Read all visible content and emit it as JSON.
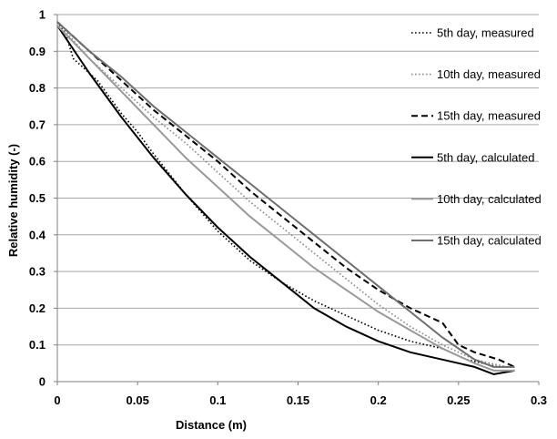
{
  "chart_data": {
    "type": "line",
    "title": "",
    "xlabel": "Distance (m)",
    "ylabel": "Relative humidity (-)",
    "xlim": [
      0,
      0.3
    ],
    "ylim": [
      0,
      1
    ],
    "xticks": [
      0,
      0.05,
      0.1,
      0.15,
      0.2,
      0.25,
      0.3
    ],
    "xtick_labels": [
      "0",
      "0.05",
      "0.1",
      "0.15",
      "0.2",
      "0.25",
      "0.3"
    ],
    "yticks": [
      0,
      0.1,
      0.2,
      0.3,
      0.4,
      0.5,
      0.6,
      0.7,
      0.8,
      0.9,
      1
    ],
    "ytick_labels": [
      "0",
      "0.1",
      "0.2",
      "0.3",
      "0.4",
      "0.5",
      "0.6",
      "0.7",
      "0.8",
      "0.9",
      "1"
    ],
    "grid": "horizontal",
    "legend_position": "right",
    "series": [
      {
        "name": "5th day, measured",
        "color": "#000000",
        "style": "dotted",
        "x": [
          0,
          0.005,
          0.01,
          0.015,
          0.02,
          0.025,
          0.03,
          0.035,
          0.04,
          0.05,
          0.06,
          0.08,
          0.1,
          0.12,
          0.14,
          0.16,
          0.18,
          0.2,
          0.22,
          0.24,
          0.255,
          0.275,
          0.285
        ],
        "y": [
          0.98,
          0.95,
          0.88,
          0.86,
          0.84,
          0.82,
          0.79,
          0.76,
          0.73,
          0.68,
          0.62,
          0.51,
          0.41,
          0.33,
          0.27,
          0.22,
          0.18,
          0.14,
          0.11,
          0.09,
          0.06,
          0.04,
          0.04
        ]
      },
      {
        "name": "10th day, measured",
        "color": "#888888",
        "style": "dotted",
        "x": [
          0,
          0.02,
          0.04,
          0.06,
          0.08,
          0.1,
          0.12,
          0.14,
          0.16,
          0.18,
          0.2,
          0.22,
          0.24,
          0.26,
          0.28
        ],
        "y": [
          0.98,
          0.88,
          0.8,
          0.72,
          0.65,
          0.57,
          0.49,
          0.42,
          0.35,
          0.28,
          0.21,
          0.15,
          0.1,
          0.06,
          0.04
        ]
      },
      {
        "name": "15th day, measured",
        "color": "#000000",
        "style": "dashed",
        "x": [
          0,
          0.02,
          0.04,
          0.06,
          0.08,
          0.1,
          0.12,
          0.14,
          0.16,
          0.18,
          0.2,
          0.22,
          0.24,
          0.25,
          0.26,
          0.275,
          0.285
        ],
        "y": [
          0.98,
          0.9,
          0.82,
          0.74,
          0.67,
          0.6,
          0.52,
          0.45,
          0.38,
          0.31,
          0.25,
          0.2,
          0.16,
          0.1,
          0.08,
          0.06,
          0.04
        ]
      },
      {
        "name": "5th day, calculated",
        "color": "#000000",
        "style": "solid",
        "x": [
          0,
          0.02,
          0.04,
          0.06,
          0.08,
          0.1,
          0.12,
          0.14,
          0.16,
          0.18,
          0.2,
          0.22,
          0.24,
          0.26,
          0.272,
          0.285
        ],
        "y": [
          0.97,
          0.84,
          0.72,
          0.61,
          0.51,
          0.42,
          0.34,
          0.27,
          0.2,
          0.15,
          0.11,
          0.08,
          0.06,
          0.04,
          0.02,
          0.03
        ]
      },
      {
        "name": "10th day, calculated",
        "color": "#999999",
        "style": "solid",
        "x": [
          0,
          0.02,
          0.04,
          0.06,
          0.08,
          0.1,
          0.12,
          0.14,
          0.16,
          0.18,
          0.2,
          0.22,
          0.24,
          0.26,
          0.272,
          0.285
        ],
        "y": [
          0.97,
          0.88,
          0.79,
          0.7,
          0.61,
          0.53,
          0.45,
          0.38,
          0.31,
          0.25,
          0.19,
          0.14,
          0.09,
          0.05,
          0.03,
          0.03
        ]
      },
      {
        "name": "15th day, calculated",
        "color": "#6e6e6e",
        "style": "solid",
        "x": [
          0,
          0.02,
          0.04,
          0.06,
          0.08,
          0.1,
          0.12,
          0.14,
          0.16,
          0.18,
          0.2,
          0.22,
          0.24,
          0.26,
          0.272,
          0.285
        ],
        "y": [
          0.98,
          0.9,
          0.83,
          0.75,
          0.68,
          0.61,
          0.54,
          0.47,
          0.4,
          0.33,
          0.26,
          0.19,
          0.12,
          0.06,
          0.04,
          0.04
        ]
      }
    ]
  }
}
